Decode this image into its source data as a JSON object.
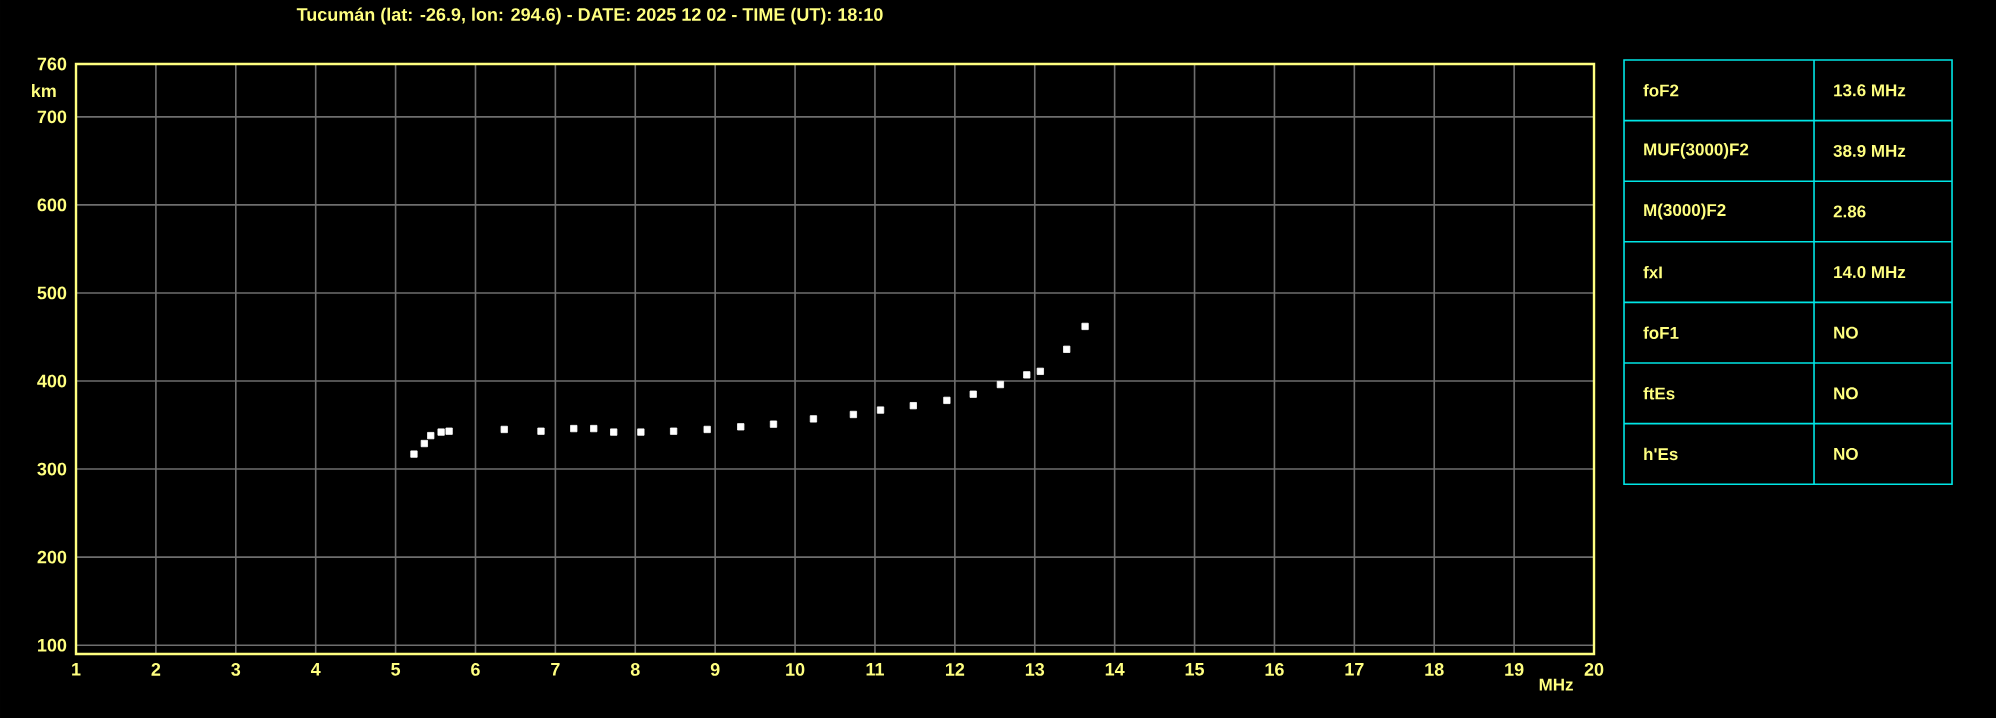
{
  "chart_data": [
    {
      "type": "scatter",
      "title": "Tucumán (lat: -26.9, lon: 294.6) - DATE: 2025 12 02 - TIME (UT): 18:10",
      "xlabel": "MHz",
      "ylabel": "km",
      "xlim": [
        1,
        20
      ],
      "ylim": [
        90,
        760
      ],
      "xticks": [
        1,
        2,
        3,
        4,
        5,
        6,
        7,
        8,
        9,
        10,
        11,
        12,
        13,
        14,
        15,
        16,
        17,
        18,
        19,
        20
      ],
      "yticks": [
        100,
        200,
        300,
        400,
        500,
        600,
        700,
        760
      ],
      "grid": true,
      "marker": "square",
      "color": "#ffffff",
      "x": [
        5.23,
        5.36,
        5.44,
        5.57,
        5.67,
        6.36,
        6.82,
        7.23,
        7.48,
        7.73,
        8.07,
        8.48,
        8.9,
        9.32,
        9.73,
        10.23,
        10.73,
        11.07,
        11.48,
        11.9,
        12.23,
        12.57,
        12.9,
        13.07,
        13.4,
        13.63
      ],
      "values": [
        317,
        329,
        338,
        342,
        343,
        345,
        343,
        346,
        346,
        342,
        342,
        343,
        345,
        348,
        351,
        357,
        362,
        367,
        372,
        378,
        385,
        396,
        407,
        411,
        436,
        462
      ]
    },
    {
      "type": "other",
      "annotations": [
        "foF2",
        "13.6 MHz",
        "MUF(3000)F2",
        "38.9 MHz",
        "M(3000)F2",
        "2.86",
        "fxI",
        "14.0 MHz",
        "foF1",
        "NO",
        "ftEs",
        "NO",
        "h'Es",
        "NO"
      ]
    }
  ]
}
